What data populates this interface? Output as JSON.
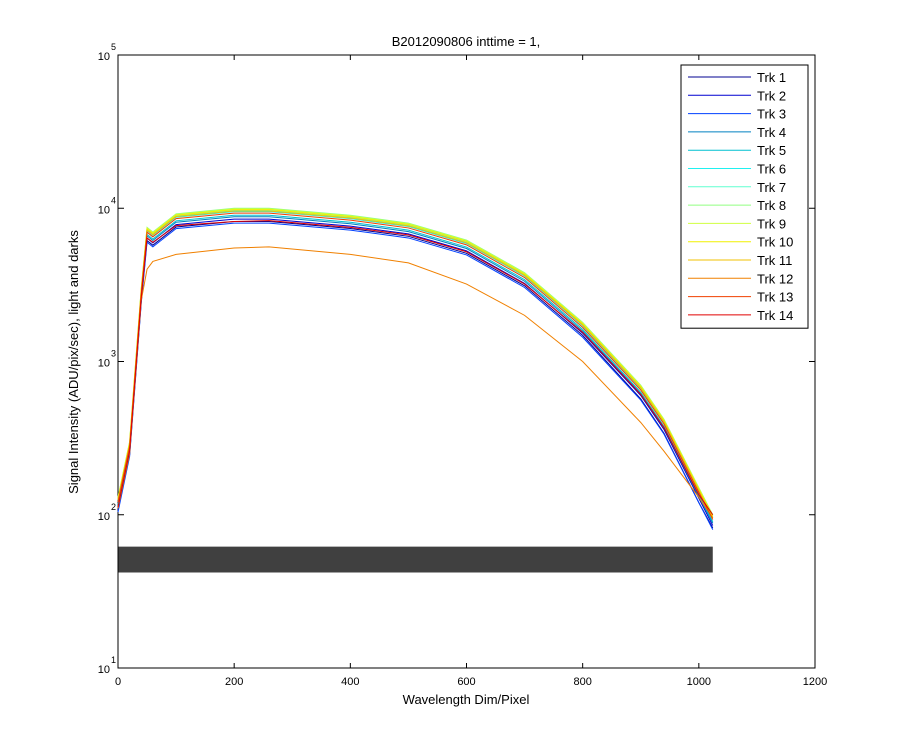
{
  "chart_data": {
    "type": "line",
    "title": "B2012090806 inttime = 1,",
    "xlabel": "Wavelength Dim/Pixel",
    "ylabel": "Signal Intensity (ADU/pix/sec), light and darks",
    "log_y": true,
    "legend": "northeast",
    "xlim": [
      0,
      1200
    ],
    "xticks": [
      0,
      200,
      400,
      600,
      800,
      1000,
      1200
    ],
    "ylim": [
      10,
      100000
    ],
    "yticks": [
      {
        "value": 10,
        "label": "10",
        "exponent": "1"
      },
      {
        "value": 100,
        "label": "10",
        "exponent": "2"
      },
      {
        "value": 1000,
        "label": "10",
        "exponent": "3"
      },
      {
        "value": 10000,
        "label": "10",
        "exponent": "4"
      },
      {
        "value": 100000,
        "label": "10",
        "exponent": "5"
      }
    ],
    "x": [
      0,
      20,
      40,
      50,
      60,
      100,
      200,
      260,
      400,
      500,
      600,
      700,
      800,
      900,
      940,
      1000,
      1024
    ],
    "series": [
      {
        "name": "Trk 1",
        "color": "#000090",
        "values": [
          107,
          246,
          2460,
          6150,
          5740,
          7540,
          8200,
          8200,
          7380,
          6560,
          5080,
          3120,
          1480,
          570,
          340,
          120,
          82
        ]
      },
      {
        "name": "Trk 2",
        "color": "#0000d0",
        "values": [
          110,
          255,
          2550,
          6380,
          5950,
          7820,
          8500,
          8500,
          7650,
          6800,
          5270,
          3230,
          1530,
          600,
          360,
          128,
          85
        ]
      },
      {
        "name": "Trk 3",
        "color": "#0040ff",
        "values": [
          104,
          240,
          2400,
          6000,
          5600,
          7360,
          8000,
          8000,
          7200,
          6400,
          4960,
          3040,
          1440,
          560,
          336,
          120,
          80
        ]
      },
      {
        "name": "Trk 4",
        "color": "#0080c0",
        "values": [
          114,
          264,
          2640,
          6600,
          6160,
          8100,
          8800,
          8800,
          7920,
          7040,
          5460,
          3340,
          1580,
          616,
          370,
          132,
          88
        ]
      },
      {
        "name": "Trk 5",
        "color": "#00c0d0",
        "values": [
          117,
          270,
          2700,
          6750,
          6300,
          8280,
          9000,
          9000,
          8100,
          7200,
          5580,
          3420,
          1620,
          630,
          378,
          135,
          90
        ]
      },
      {
        "name": "Trk 6",
        "color": "#20f0f0",
        "values": [
          124,
          285,
          2850,
          7130,
          6650,
          8740,
          9500,
          9500,
          8550,
          7600,
          5890,
          3610,
          1710,
          665,
          400,
          143,
          95
        ]
      },
      {
        "name": "Trk 7",
        "color": "#60ffd0",
        "values": [
          126,
          291,
          2910,
          7280,
          6790,
          8920,
          9700,
          9700,
          8730,
          7760,
          6010,
          3690,
          1750,
          680,
          407,
          146,
          97
        ]
      },
      {
        "name": "Trk 8",
        "color": "#90ff80",
        "values": [
          130,
          300,
          3000,
          7500,
          7000,
          9200,
          10000,
          10000,
          9000,
          8000,
          6200,
          3800,
          1800,
          700,
          420,
          150,
          100
        ]
      },
      {
        "name": "Trk 9",
        "color": "#d0ff40",
        "values": [
          129,
          297,
          2970,
          7430,
          6930,
          9110,
          9900,
          9900,
          8910,
          7920,
          6140,
          3760,
          1780,
          693,
          416,
          149,
          99
        ]
      },
      {
        "name": "Trk 10",
        "color": "#f0f000",
        "values": [
          127,
          294,
          2940,
          7350,
          6860,
          9020,
          9800,
          9800,
          8820,
          7840,
          6080,
          3720,
          1760,
          686,
          412,
          147,
          98
        ]
      },
      {
        "name": "Trk 11",
        "color": "#f0c000",
        "values": [
          125,
          288,
          2880,
          7200,
          6720,
          8830,
          9600,
          9600,
          8640,
          7680,
          5950,
          3650,
          1730,
          672,
          403,
          144,
          96
        ]
      },
      {
        "name": "Trk 12",
        "color": "#f08000",
        "values": [
          110,
          250,
          2500,
          4000,
          4500,
          5000,
          5500,
          5600,
          5000,
          4400,
          3200,
          2000,
          1000,
          400,
          260,
          130,
          95
        ]
      },
      {
        "name": "Trk 13",
        "color": "#f04000",
        "values": [
          121,
          279,
          2790,
          6980,
          6510,
          8560,
          9300,
          9300,
          8370,
          7440,
          5770,
          3530,
          1670,
          651,
          391,
          140,
          93
        ]
      },
      {
        "name": "Trk 14",
        "color": "#e00000",
        "values": [
          112,
          260,
          2600,
          6400,
          6000,
          7700,
          8200,
          8300,
          7500,
          6700,
          5200,
          3200,
          1550,
          610,
          370,
          135,
          100
        ]
      }
    ],
    "darks": {
      "color": "#000000",
      "x": [
        0,
        1024
      ],
      "lower": [
        42,
        42
      ],
      "upper": [
        62,
        62
      ]
    }
  }
}
